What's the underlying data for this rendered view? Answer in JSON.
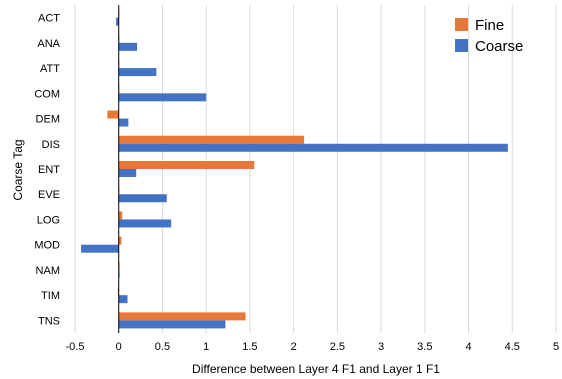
{
  "chart_data": {
    "type": "bar",
    "orientation": "horizontal",
    "title": "",
    "xlabel": "Difference between Layer 4 F1 and Layer 1 F1",
    "ylabel": "Coarse Tag",
    "xlim": [
      -0.5,
      5
    ],
    "xticks": [
      -0.5,
      0,
      0.5,
      1,
      1.5,
      2,
      2.5,
      3,
      3.5,
      4,
      4.5,
      5
    ],
    "xtick_labels": [
      "-0.5",
      "0",
      "0.5",
      "1",
      "1.5",
      "2",
      "2.5",
      "3",
      "3.5",
      "4",
      "4.5",
      "5"
    ],
    "grid": true,
    "legend_position": "top-right",
    "categories": [
      "ACT",
      "ANA",
      "ATT",
      "COM",
      "DEM",
      "DIS",
      "ENT",
      "EVE",
      "LOG",
      "MOD",
      "NAM",
      "TIM",
      "TNS"
    ],
    "series": [
      {
        "name": "Fine",
        "color": "#E8783A",
        "values": [
          0,
          0,
          0,
          0,
          -0.13,
          2.12,
          1.55,
          0,
          0.04,
          0.03,
          0.01,
          -0.01,
          1.45
        ]
      },
      {
        "name": "Coarse",
        "color": "#4472C4",
        "values": [
          -0.03,
          0.21,
          0.43,
          1.0,
          0.11,
          4.45,
          0.2,
          0.55,
          0.6,
          -0.43,
          0.01,
          0.1,
          1.22
        ]
      }
    ]
  }
}
